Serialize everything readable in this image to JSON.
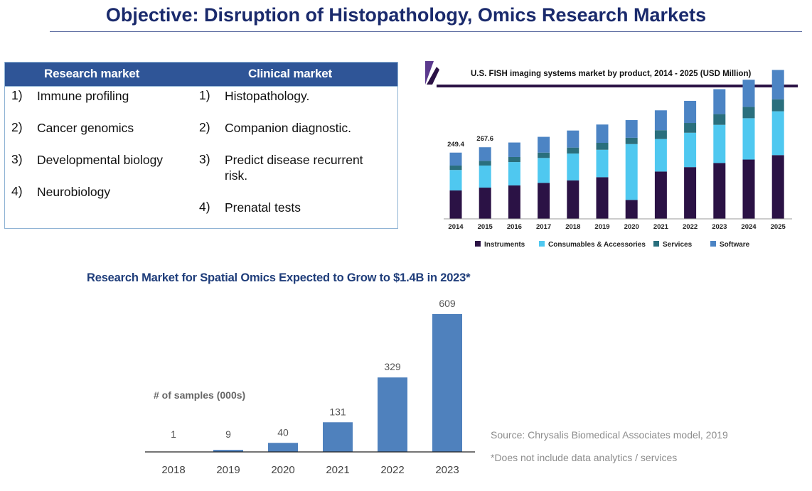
{
  "title": "Objective: Disruption of Histopathology, Omics Research Markets",
  "market_table": {
    "research_header": "Research market",
    "clinical_header": "Clinical market",
    "research_items": [
      {
        "num": "1)",
        "text": "Immune profiling"
      },
      {
        "num": "2)",
        "text": "Cancer genomics"
      },
      {
        "num": "3)",
        "text": "Developmental biology"
      },
      {
        "num": "4)",
        "text": "Neurobiology"
      }
    ],
    "clinical_items": [
      {
        "num": "1)",
        "text": "Histopathology."
      },
      {
        "num": "2)",
        "text": "Companion diagnostic."
      },
      {
        "num": "3)",
        "text": "Predict disease recurrent risk."
      },
      {
        "num": "4)",
        "text": "Prenatal tests"
      }
    ]
  },
  "spatial_title": "Research Market for Spatial Omics Expected to Grow to $1.4B  in 2023*",
  "source_note": "Source:  Chrysalis Biomedical Associates model, 2019",
  "footnote": "*Does not include data analytics / services",
  "colors": {
    "title": "#1a2a6c",
    "table_header": "#2f5597",
    "instruments": "#2b1245",
    "consumables": "#4fc8f0",
    "services": "#2a6f7d",
    "software": "#4c84c4",
    "spatial_bar": "#4f81bd"
  },
  "chart_data": [
    {
      "type": "bar",
      "stacked": true,
      "title": "U.S. FISH imaging systems market by product, 2014 - 2025 (USD Million)",
      "categories": [
        "2014",
        "2015",
        "2016",
        "2017",
        "2018",
        "2019",
        "2020",
        "2021",
        "2022",
        "2023",
        "2024",
        "2025"
      ],
      "series": [
        {
          "name": "Instruments",
          "values": [
            90,
            99,
            106,
            114,
            122,
            132,
            60,
            150,
            164,
            177,
            188,
            202
          ]
        },
        {
          "name": "Consumables & Accessories",
          "values": [
            65,
            70,
            74,
            79,
            85,
            87,
            177,
            103,
            109,
            121,
            131,
            139
          ]
        },
        {
          "name": "Services",
          "values": [
            14,
            15,
            16,
            17,
            19,
            22,
            20,
            28,
            31,
            34,
            36,
            38
          ]
        },
        {
          "name": "Software",
          "values": [
            41,
            43,
            46,
            50,
            54,
            58,
            56,
            63,
            70,
            79,
            86,
            93
          ]
        }
      ],
      "data_labels": [
        {
          "category": "2014",
          "text": "249.4"
        },
        {
          "category": "2015",
          "text": "267.6"
        }
      ],
      "ylim": [
        0,
        500
      ],
      "legend": "bottom",
      "grid": false
    },
    {
      "type": "bar",
      "title": "",
      "categories": [
        "2018",
        "2019",
        "2020",
        "2021",
        "2022",
        "2023"
      ],
      "values": [
        1,
        9,
        40,
        131,
        329,
        609
      ],
      "value_labels": [
        "1",
        "9",
        "40",
        "131",
        "329",
        "609"
      ],
      "series_label": "# of samples (000s)",
      "ylim": [
        0,
        609
      ],
      "grid": false
    }
  ]
}
